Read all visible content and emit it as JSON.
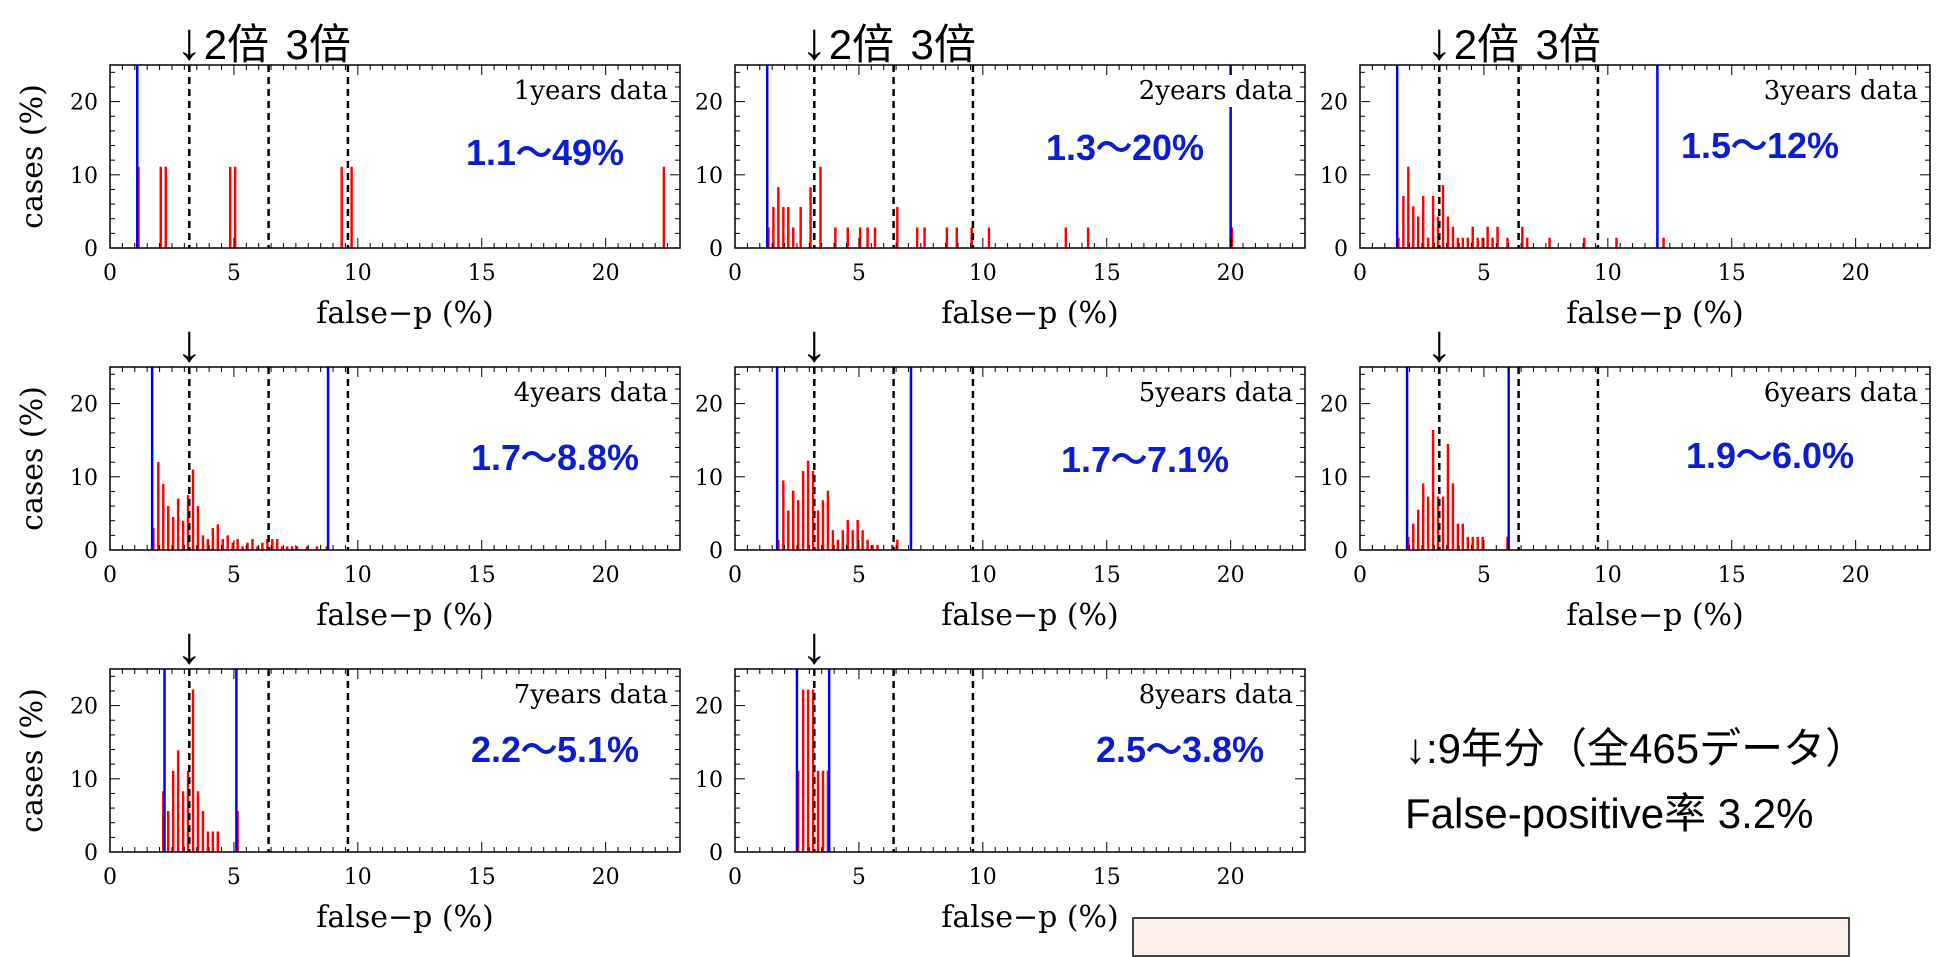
{
  "figure": {
    "threshold_x": [
      3.2,
      6.4,
      9.6
    ],
    "arrow_symbol": "↓",
    "top_labels": [
      "2倍",
      "3倍"
    ],
    "xlim": [
      0,
      23
    ],
    "ylim": [
      0,
      25
    ],
    "xticks": [
      0,
      5,
      10,
      15,
      20
    ],
    "yticks": [
      0,
      10,
      20
    ],
    "xlabel": "false−p (%)",
    "ylabel": "cases (%)",
    "colors": {
      "bar": "#ff0000",
      "range_line": "#0000ff",
      "range_text": "#0a1ed2",
      "threshold": "#000000"
    }
  },
  "legend": {
    "line1": "↓:9年分（全465データ）",
    "line2": "False-positive率 3.2%"
  },
  "chart_data": [
    {
      "type": "bar",
      "title": "1years data",
      "range_label": "1.1〜49%",
      "range": [
        1.1,
        49
      ],
      "bin_width": 0.2,
      "bars": [
        [
          1.1,
          11.1
        ],
        [
          2.0,
          11.1
        ],
        [
          2.2,
          11.1
        ],
        [
          4.8,
          11.1
        ],
        [
          5.0,
          11.1
        ],
        [
          9.3,
          11.1
        ],
        [
          9.7,
          11.1
        ],
        [
          22.3,
          11.1
        ]
      ]
    },
    {
      "type": "bar",
      "title": "2years data",
      "range_label": "1.3〜20%",
      "range": [
        1.3,
        20
      ],
      "bin_width": 0.2,
      "bars": [
        [
          1.3,
          2.8
        ],
        [
          1.5,
          5.6
        ],
        [
          1.7,
          8.3
        ],
        [
          1.9,
          5.6
        ],
        [
          2.1,
          5.6
        ],
        [
          2.3,
          2.8
        ],
        [
          2.6,
          5.6
        ],
        [
          3.0,
          8.3
        ],
        [
          3.4,
          11.1
        ],
        [
          4.0,
          2.8
        ],
        [
          4.5,
          2.8
        ],
        [
          5.0,
          2.8
        ],
        [
          5.3,
          2.8
        ],
        [
          5.6,
          2.8
        ],
        [
          6.5,
          5.6
        ],
        [
          7.3,
          2.8
        ],
        [
          7.6,
          2.8
        ],
        [
          8.5,
          2.8
        ],
        [
          8.9,
          2.8
        ],
        [
          9.5,
          2.8
        ],
        [
          10.2,
          2.8
        ],
        [
          13.3,
          2.8
        ],
        [
          14.2,
          2.8
        ],
        [
          20.0,
          2.8
        ]
      ]
    },
    {
      "type": "bar",
      "title": "3years data",
      "range_label": "1.5〜12%",
      "range": [
        1.5,
        12
      ],
      "bin_width": 0.2,
      "bars": [
        [
          1.5,
          1.4
        ],
        [
          1.7,
          7.1
        ],
        [
          1.9,
          11.1
        ],
        [
          2.1,
          5.7
        ],
        [
          2.3,
          4.3
        ],
        [
          2.5,
          7.1
        ],
        [
          2.7,
          1.4
        ],
        [
          2.9,
          7.1
        ],
        [
          3.1,
          4.3
        ],
        [
          3.3,
          8.6
        ],
        [
          3.5,
          4.3
        ],
        [
          3.7,
          2.9
        ],
        [
          3.9,
          1.4
        ],
        [
          4.1,
          1.4
        ],
        [
          4.3,
          1.4
        ],
        [
          4.5,
          2.9
        ],
        [
          4.7,
          1.4
        ],
        [
          4.9,
          1.4
        ],
        [
          5.1,
          2.9
        ],
        [
          5.3,
          1.4
        ],
        [
          5.5,
          2.9
        ],
        [
          5.9,
          1.4
        ],
        [
          6.5,
          2.9
        ],
        [
          6.7,
          1.4
        ],
        [
          7.6,
          1.4
        ],
        [
          9.0,
          1.4
        ],
        [
          10.3,
          1.4
        ],
        [
          12.2,
          1.4
        ]
      ]
    },
    {
      "type": "bar",
      "title": "4years data",
      "range_label": "1.7〜8.8%",
      "range": [
        1.7,
        8.8
      ],
      "bin_width": 0.2,
      "bars": [
        [
          1.7,
          3.0
        ],
        [
          1.9,
          12.0
        ],
        [
          2.1,
          9.0
        ],
        [
          2.3,
          6.0
        ],
        [
          2.5,
          4.5
        ],
        [
          2.7,
          7.0
        ],
        [
          2.9,
          4.0
        ],
        [
          3.1,
          7.5
        ],
        [
          3.3,
          11.0
        ],
        [
          3.5,
          6.0
        ],
        [
          3.7,
          2.0
        ],
        [
          3.9,
          1.5
        ],
        [
          4.1,
          3.0
        ],
        [
          4.3,
          3.5
        ],
        [
          4.5,
          1.5
        ],
        [
          4.7,
          2.0
        ],
        [
          4.9,
          1.0
        ],
        [
          5.1,
          1.5
        ],
        [
          5.3,
          0.5
        ],
        [
          5.5,
          1.0
        ],
        [
          5.7,
          1.5
        ],
        [
          5.9,
          0.5
        ],
        [
          6.1,
          1.0
        ],
        [
          6.3,
          1.5
        ],
        [
          6.5,
          1.5
        ],
        [
          6.7,
          1.5
        ],
        [
          6.9,
          0.5
        ],
        [
          7.1,
          0.5
        ],
        [
          7.3,
          0.5
        ],
        [
          7.5,
          0.5
        ],
        [
          7.9,
          0.5
        ],
        [
          8.3,
          0.5
        ],
        [
          8.7,
          0.5
        ]
      ]
    },
    {
      "type": "bar",
      "title": "5years data",
      "range_label": "1.7〜7.1%",
      "range": [
        1.7,
        7.1
      ],
      "bin_width": 0.2,
      "bars": [
        [
          1.7,
          1.4
        ],
        [
          1.9,
          9.5
        ],
        [
          2.1,
          5.4
        ],
        [
          2.3,
          8.1
        ],
        [
          2.5,
          6.8
        ],
        [
          2.7,
          10.8
        ],
        [
          2.9,
          12.2
        ],
        [
          3.1,
          10.8
        ],
        [
          3.3,
          5.4
        ],
        [
          3.5,
          6.8
        ],
        [
          3.7,
          8.1
        ],
        [
          3.9,
          2.7
        ],
        [
          4.1,
          1.4
        ],
        [
          4.3,
          2.7
        ],
        [
          4.5,
          4.1
        ],
        [
          4.7,
          2.7
        ],
        [
          4.9,
          4.1
        ],
        [
          5.1,
          2.7
        ],
        [
          5.3,
          1.4
        ],
        [
          5.5,
          0.7
        ],
        [
          5.7,
          0.7
        ],
        [
          6.3,
          0.7
        ],
        [
          6.5,
          1.4
        ]
      ]
    },
    {
      "type": "bar",
      "title": "6years data",
      "range_label": "1.9〜6.0%",
      "range": [
        1.9,
        6.0
      ],
      "bin_width": 0.2,
      "bars": [
        [
          1.9,
          1.8
        ],
        [
          2.1,
          3.6
        ],
        [
          2.3,
          5.5
        ],
        [
          2.5,
          9.1
        ],
        [
          2.7,
          7.3
        ],
        [
          2.9,
          16.4
        ],
        [
          3.1,
          7.3
        ],
        [
          3.3,
          7.3
        ],
        [
          3.5,
          14.5
        ],
        [
          3.7,
          9.1
        ],
        [
          3.9,
          3.6
        ],
        [
          4.1,
          3.6
        ],
        [
          4.3,
          1.8
        ],
        [
          4.5,
          1.8
        ],
        [
          4.7,
          1.8
        ],
        [
          4.9,
          1.8
        ],
        [
          5.9,
          1.8
        ]
      ]
    },
    {
      "type": "bar",
      "title": "7years data",
      "range_label": "2.2〜5.1%",
      "range": [
        2.2,
        5.1
      ],
      "bin_width": 0.2,
      "bars": [
        [
          2.1,
          8.3
        ],
        [
          2.3,
          5.6
        ],
        [
          2.5,
          11.1
        ],
        [
          2.7,
          13.9
        ],
        [
          2.9,
          8.3
        ],
        [
          3.1,
          11.1
        ],
        [
          3.3,
          22.2
        ],
        [
          3.5,
          8.3
        ],
        [
          3.7,
          5.6
        ],
        [
          3.9,
          2.8
        ],
        [
          4.1,
          2.8
        ],
        [
          4.3,
          2.8
        ],
        [
          5.1,
          5.6
        ]
      ]
    },
    {
      "type": "bar",
      "title": "8years data",
      "range_label": "2.5〜3.8%",
      "range": [
        2.5,
        3.8
      ],
      "bin_width": 0.2,
      "bars": [
        [
          2.5,
          11.1
        ],
        [
          2.7,
          22.2
        ],
        [
          2.9,
          22.2
        ],
        [
          3.1,
          22.2
        ],
        [
          3.3,
          11.1
        ],
        [
          3.5,
          11.1
        ],
        [
          3.7,
          11.1
        ]
      ]
    }
  ]
}
